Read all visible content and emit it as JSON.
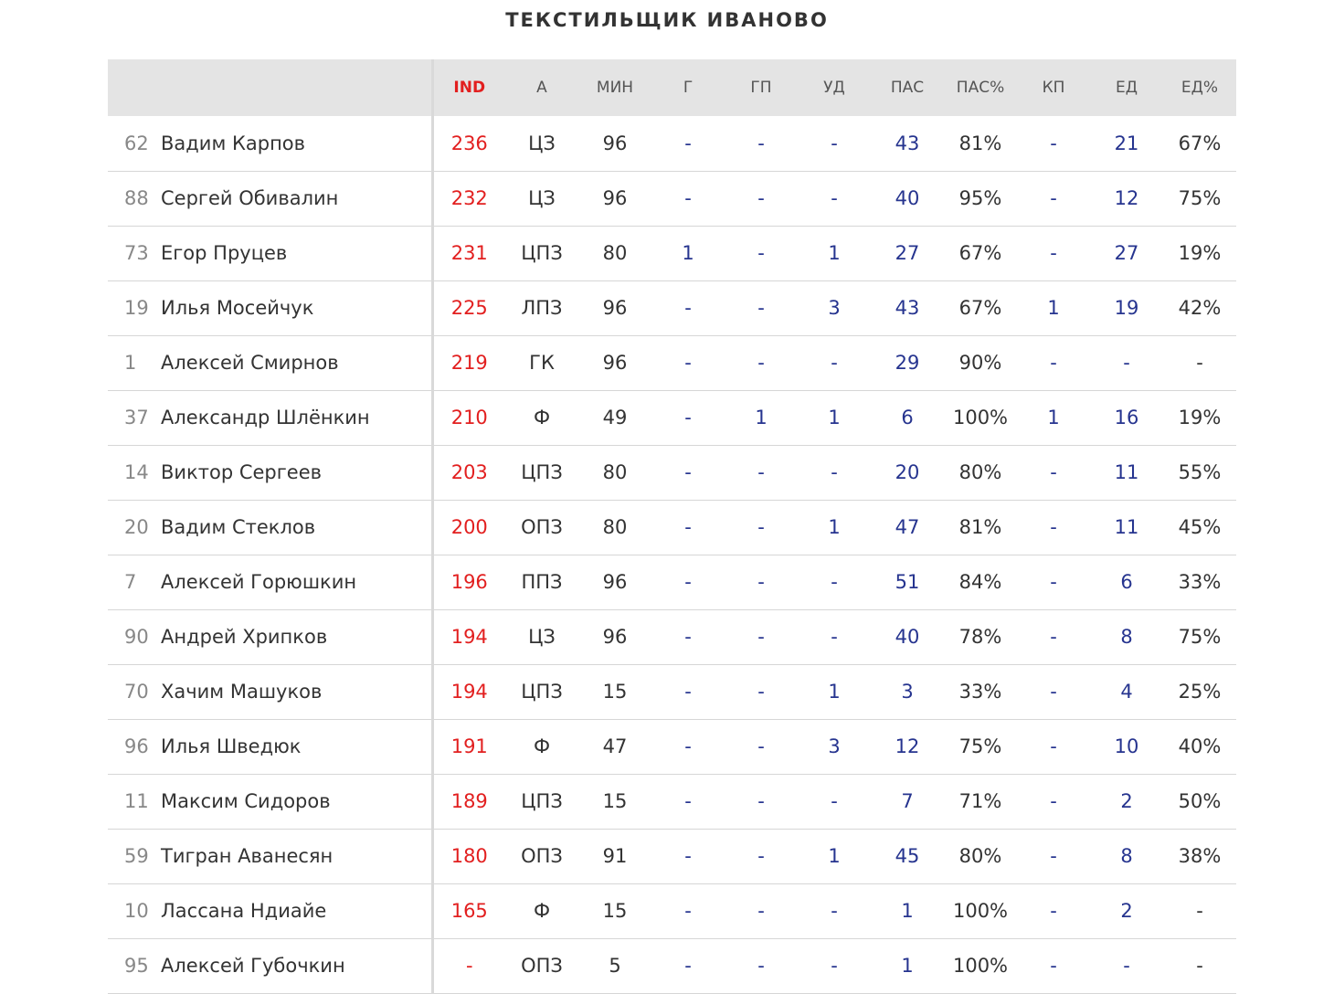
{
  "team_title": "ТЕКСТИЛЬЩИК ИВАНОВО",
  "columns": [
    "IND",
    "А",
    "МИН",
    "Г",
    "ГП",
    "УД",
    "ПАС",
    "ПАС%",
    "КП",
    "ЕД",
    "ЕД%"
  ],
  "colors": {
    "ind": "#e21f1f",
    "stat_link": "#26348f",
    "header_bg": "#e4e4e4"
  },
  "players": [
    {
      "num": "62",
      "name": "Вадим Карпов",
      "stats": [
        "236",
        "ЦЗ",
        "96",
        "-",
        "-",
        "-",
        "43",
        "81%",
        "-",
        "21",
        "67%"
      ]
    },
    {
      "num": "88",
      "name": "Сергей Обивалин",
      "stats": [
        "232",
        "ЦЗ",
        "96",
        "-",
        "-",
        "-",
        "40",
        "95%",
        "-",
        "12",
        "75%"
      ]
    },
    {
      "num": "73",
      "name": "Егор Пруцев",
      "stats": [
        "231",
        "ЦПЗ",
        "80",
        "1",
        "-",
        "1",
        "27",
        "67%",
        "-",
        "27",
        "19%"
      ]
    },
    {
      "num": "19",
      "name": "Илья Мосейчук",
      "stats": [
        "225",
        "ЛПЗ",
        "96",
        "-",
        "-",
        "3",
        "43",
        "67%",
        "1",
        "19",
        "42%"
      ]
    },
    {
      "num": "1",
      "name": "Алексей Смирнов",
      "stats": [
        "219",
        "ГК",
        "96",
        "-",
        "-",
        "-",
        "29",
        "90%",
        "-",
        "-",
        "-"
      ]
    },
    {
      "num": "37",
      "name": "Александр Шлёнкин",
      "stats": [
        "210",
        "Ф",
        "49",
        "-",
        "1",
        "1",
        "6",
        "100%",
        "1",
        "16",
        "19%"
      ]
    },
    {
      "num": "14",
      "name": "Виктор Сергеев",
      "stats": [
        "203",
        "ЦПЗ",
        "80",
        "-",
        "-",
        "-",
        "20",
        "80%",
        "-",
        "11",
        "55%"
      ]
    },
    {
      "num": "20",
      "name": "Вадим Стеклов",
      "stats": [
        "200",
        "ОПЗ",
        "80",
        "-",
        "-",
        "1",
        "47",
        "81%",
        "-",
        "11",
        "45%"
      ]
    },
    {
      "num": "7",
      "name": "Алексей Горюшкин",
      "stats": [
        "196",
        "ППЗ",
        "96",
        "-",
        "-",
        "-",
        "51",
        "84%",
        "-",
        "6",
        "33%"
      ]
    },
    {
      "num": "90",
      "name": "Андрей Хрипков",
      "stats": [
        "194",
        "ЦЗ",
        "96",
        "-",
        "-",
        "-",
        "40",
        "78%",
        "-",
        "8",
        "75%"
      ]
    },
    {
      "num": "70",
      "name": "Хачим Машуков",
      "stats": [
        "194",
        "ЦПЗ",
        "15",
        "-",
        "-",
        "1",
        "3",
        "33%",
        "-",
        "4",
        "25%"
      ]
    },
    {
      "num": "96",
      "name": "Илья Шведюк",
      "stats": [
        "191",
        "Ф",
        "47",
        "-",
        "-",
        "3",
        "12",
        "75%",
        "-",
        "10",
        "40%"
      ]
    },
    {
      "num": "11",
      "name": "Максим Сидоров",
      "stats": [
        "189",
        "ЦПЗ",
        "15",
        "-",
        "-",
        "-",
        "7",
        "71%",
        "-",
        "2",
        "50%"
      ]
    },
    {
      "num": "59",
      "name": "Тигран Аванесян",
      "stats": [
        "180",
        "ОПЗ",
        "91",
        "-",
        "-",
        "1",
        "45",
        "80%",
        "-",
        "8",
        "38%"
      ]
    },
    {
      "num": "10",
      "name": "Лассана Ндиайе",
      "stats": [
        "165",
        "Ф",
        "15",
        "-",
        "-",
        "-",
        "1",
        "100%",
        "-",
        "2",
        "-"
      ]
    },
    {
      "num": "95",
      "name": "Алексей Губочкин",
      "stats": [
        "-",
        "ОПЗ",
        "5",
        "-",
        "-",
        "-",
        "1",
        "100%",
        "-",
        "-",
        "-"
      ]
    }
  ]
}
